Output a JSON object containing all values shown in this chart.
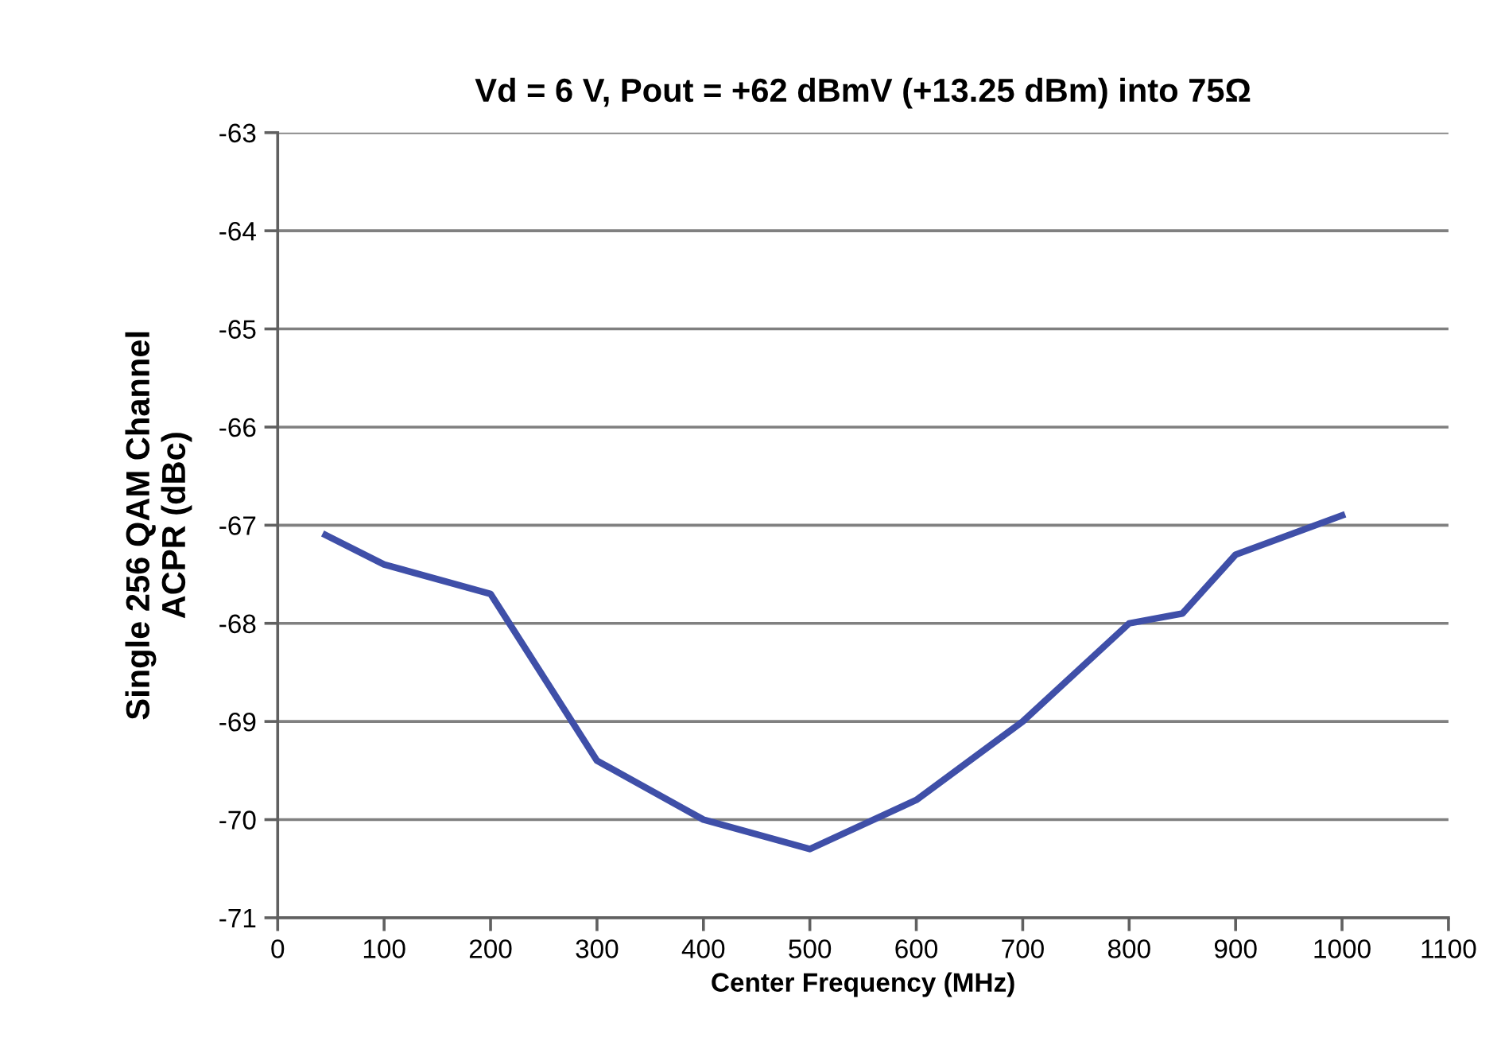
{
  "chart_data": {
    "type": "line",
    "title": "Vd = 6 V, Pout = +62 dBmV (+13.25 dBm) into 75Ω",
    "xlabel": "Center Frequency (MHz)",
    "ylabel": "Single 256 QAM Channel\nACPR (dBc)",
    "x": [
      45,
      100,
      200,
      300,
      400,
      500,
      600,
      700,
      800,
      850,
      900,
      1000
    ],
    "series": [
      {
        "color": "#3f4fa8",
        "values": [
          -67.1,
          -67.4,
          -67.7,
          -69.4,
          -70.0,
          -70.3,
          -69.8,
          -69.0,
          -68.0,
          -67.9,
          -67.3,
          -66.9
        ]
      }
    ],
    "xlim": [
      0,
      1100
    ],
    "xticks": [
      0,
      100,
      200,
      300,
      400,
      500,
      600,
      700,
      800,
      900,
      1000,
      1100
    ],
    "ylim": [
      -71,
      -63
    ],
    "yticks": [
      -71,
      -70,
      -69,
      -68,
      -67,
      -66,
      -65,
      -64,
      -63
    ],
    "grid": "y",
    "legend": false,
    "marker": "none",
    "line_style": "solid"
  }
}
